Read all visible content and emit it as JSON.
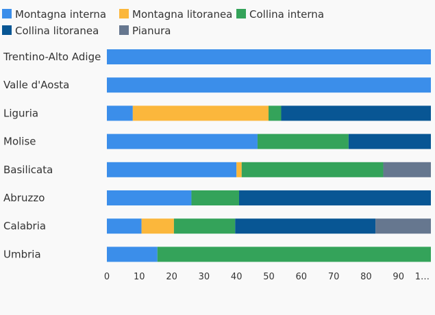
{
  "chart_data": {
    "type": "bar",
    "orientation": "horizontal",
    "stacked": true,
    "categories": [
      "Trentino-Alto Adige",
      "Valle d'Aosta",
      "Liguria",
      "Molise",
      "Basilicata",
      "Abruzzo",
      "Calabria",
      "Umbria"
    ],
    "series": [
      {
        "name": "Montagna interna",
        "color": "#3b8eea",
        "values": [
          100,
          100,
          8,
          46.5,
          40,
          26.1,
          10.7,
          15.6
        ]
      },
      {
        "name": "Montagna litoranea",
        "color": "#fbb73c",
        "values": [
          0,
          0,
          41.9,
          0,
          1.6,
          0,
          10,
          0
        ]
      },
      {
        "name": "Collina interna",
        "color": "#34a35a",
        "values": [
          0,
          0,
          3.9,
          28.1,
          43.7,
          14.7,
          18.9,
          84.4
        ]
      },
      {
        "name": "Collina litoranea",
        "color": "#085694",
        "values": [
          0,
          0,
          46.2,
          25.4,
          0,
          59.2,
          43.3,
          0
        ]
      },
      {
        "name": "Pianura",
        "color": "#66778f",
        "values": [
          0,
          0,
          0,
          0,
          14.7,
          0,
          17.1,
          0
        ]
      }
    ],
    "xlim": [
      0,
      100
    ],
    "x_tick_labels": [
      "0",
      "10",
      "20",
      "30",
      "40",
      "50",
      "60",
      "70",
      "80",
      "90",
      "1…"
    ],
    "legend_position": "top",
    "grid": false
  }
}
